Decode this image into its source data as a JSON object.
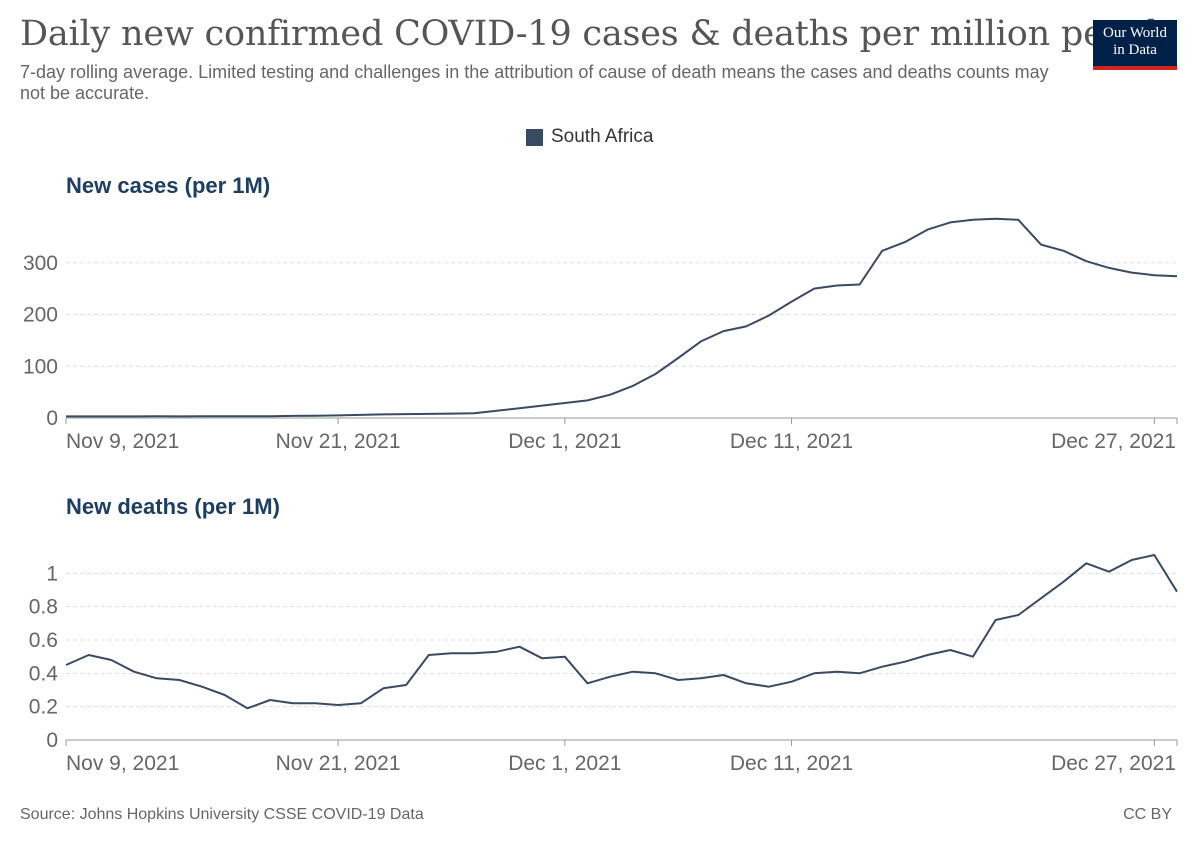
{
  "header": {
    "title": "Daily new confirmed COVID-19 cases & deaths per million people",
    "subtitle": "7-day rolling average. Limited testing and challenges in the attribution of cause of death means the cases and deaths counts may not be accurate.",
    "logo_line1": "Our World",
    "logo_line2": "in Data"
  },
  "legend": {
    "label": "South Africa",
    "color": "#3b4a63"
  },
  "footer": {
    "source": "Source: Johns Hopkins University CSSE COVID-19 Data",
    "license": "CC BY"
  },
  "chart_data": [
    {
      "type": "line",
      "title": "New cases (per 1M)",
      "x_start": "Nov 9, 2021",
      "x_end": "Dec 28, 2021",
      "x": [
        "2021-11-09",
        "2021-11-10",
        "2021-11-11",
        "2021-11-12",
        "2021-11-13",
        "2021-11-14",
        "2021-11-15",
        "2021-11-16",
        "2021-11-17",
        "2021-11-18",
        "2021-11-19",
        "2021-11-20",
        "2021-11-21",
        "2021-11-22",
        "2021-11-23",
        "2021-11-24",
        "2021-11-25",
        "2021-11-26",
        "2021-11-27",
        "2021-11-28",
        "2021-11-29",
        "2021-11-30",
        "2021-12-01",
        "2021-12-02",
        "2021-12-03",
        "2021-12-04",
        "2021-12-05",
        "2021-12-06",
        "2021-12-07",
        "2021-12-08",
        "2021-12-09",
        "2021-12-10",
        "2021-12-11",
        "2021-12-12",
        "2021-12-13",
        "2021-12-14",
        "2021-12-15",
        "2021-12-16",
        "2021-12-17",
        "2021-12-18",
        "2021-12-19",
        "2021-12-20",
        "2021-12-21",
        "2021-12-22",
        "2021-12-23",
        "2021-12-24",
        "2021-12-25",
        "2021-12-26",
        "2021-12-27",
        "2021-12-28"
      ],
      "series": [
        {
          "name": "South Africa",
          "values": [
            3,
            3,
            3,
            3,
            3.5,
            3,
            3.5,
            3.5,
            3.5,
            3.5,
            4,
            4.5,
            5,
            6,
            7,
            7.5,
            8,
            8.5,
            9,
            14,
            19,
            24,
            29,
            34,
            45,
            62,
            85,
            116,
            148,
            168,
            177,
            198,
            225,
            250,
            256,
            258,
            323,
            340,
            364,
            378,
            383,
            385,
            383,
            335,
            323,
            303,
            290,
            281,
            276,
            274
          ]
        }
      ],
      "ylim": [
        0,
        400
      ],
      "yticks": [
        0,
        100,
        200,
        300
      ],
      "xticks": [
        {
          "label": "Nov 9, 2021",
          "date": "2021-11-09"
        },
        {
          "label": "Nov 21, 2021",
          "date": "2021-11-21"
        },
        {
          "label": "Dec 1, 2021",
          "date": "2021-12-01"
        },
        {
          "label": "Dec 11, 2021",
          "date": "2021-12-11"
        },
        {
          "label": "Dec 27, 2021",
          "date": "2021-12-27"
        }
      ],
      "grid": true
    },
    {
      "type": "line",
      "title": "New deaths (per 1M)",
      "x_start": "Nov 9, 2021",
      "x_end": "Dec 28, 2021",
      "x": [
        "2021-11-09",
        "2021-11-10",
        "2021-11-11",
        "2021-11-12",
        "2021-11-13",
        "2021-11-14",
        "2021-11-15",
        "2021-11-16",
        "2021-11-17",
        "2021-11-18",
        "2021-11-19",
        "2021-11-20",
        "2021-11-21",
        "2021-11-22",
        "2021-11-23",
        "2021-11-24",
        "2021-11-25",
        "2021-11-26",
        "2021-11-27",
        "2021-11-28",
        "2021-11-29",
        "2021-11-30",
        "2021-12-01",
        "2021-12-02",
        "2021-12-03",
        "2021-12-04",
        "2021-12-05",
        "2021-12-06",
        "2021-12-07",
        "2021-12-08",
        "2021-12-09",
        "2021-12-10",
        "2021-12-11",
        "2021-12-12",
        "2021-12-13",
        "2021-12-14",
        "2021-12-15",
        "2021-12-16",
        "2021-12-17",
        "2021-12-18",
        "2021-12-19",
        "2021-12-20",
        "2021-12-21",
        "2021-12-22",
        "2021-12-23",
        "2021-12-24",
        "2021-12-25",
        "2021-12-26",
        "2021-12-27",
        "2021-12-28"
      ],
      "series": [
        {
          "name": "South Africa",
          "values": [
            0.45,
            0.51,
            0.48,
            0.41,
            0.37,
            0.36,
            0.32,
            0.27,
            0.19,
            0.24,
            0.22,
            0.22,
            0.21,
            0.22,
            0.31,
            0.33,
            0.51,
            0.52,
            0.52,
            0.53,
            0.56,
            0.49,
            0.5,
            0.34,
            0.38,
            0.41,
            0.4,
            0.36,
            0.37,
            0.39,
            0.34,
            0.32,
            0.35,
            0.4,
            0.41,
            0.4,
            0.44,
            0.47,
            0.51,
            0.54,
            0.5,
            0.72,
            0.75,
            0.85,
            0.95,
            1.06,
            1.01,
            1.08,
            1.11,
            0.89
          ]
        }
      ],
      "ylim": [
        0,
        1.2
      ],
      "yticks": [
        0,
        0.2,
        0.4,
        0.6,
        0.8,
        1
      ],
      "xticks": [
        {
          "label": "Nov 9, 2021",
          "date": "2021-11-09"
        },
        {
          "label": "Nov 21, 2021",
          "date": "2021-11-21"
        },
        {
          "label": "Dec 1, 2021",
          "date": "2021-12-01"
        },
        {
          "label": "Dec 11, 2021",
          "date": "2021-12-11"
        },
        {
          "label": "Dec 27, 2021",
          "date": "2021-12-27"
        }
      ],
      "grid": true
    }
  ]
}
